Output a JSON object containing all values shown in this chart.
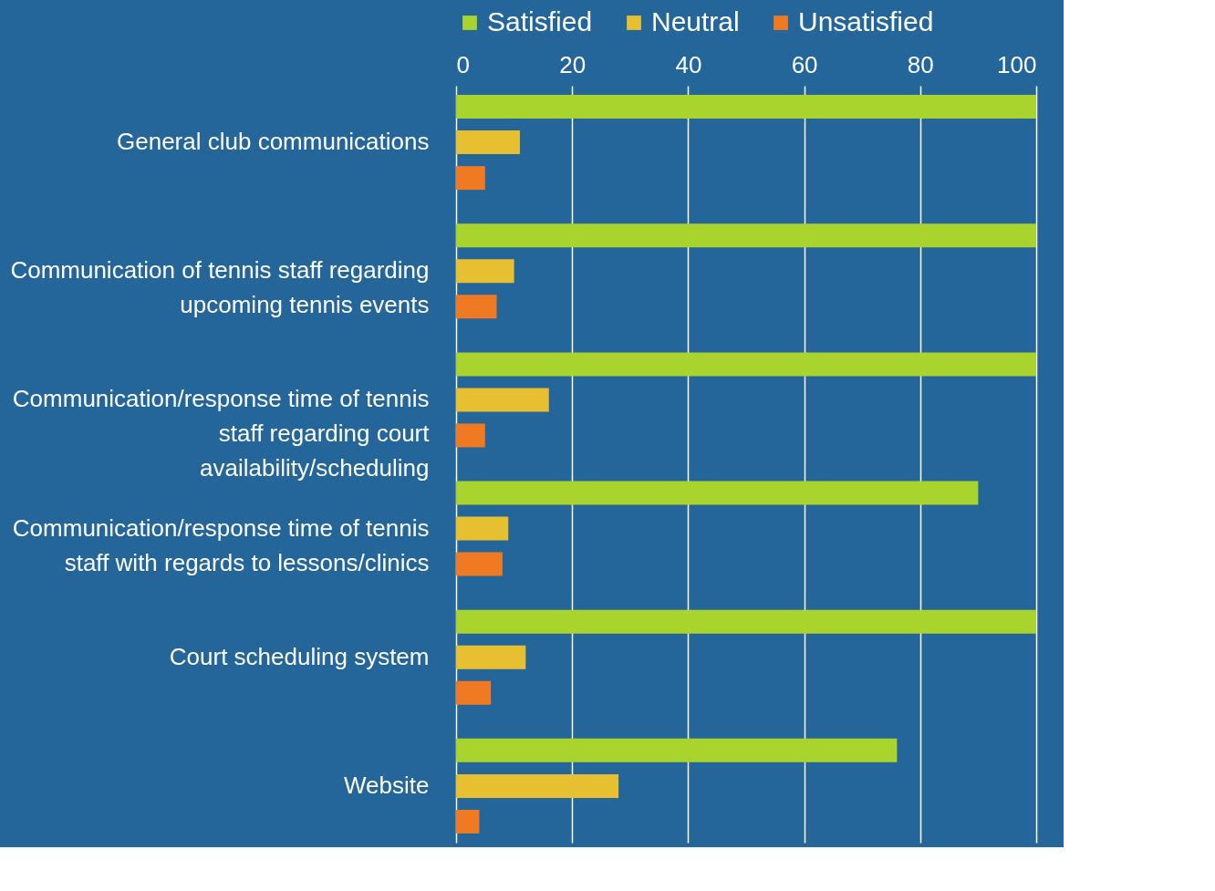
{
  "chart_data": {
    "type": "bar",
    "orientation": "horizontal",
    "categories": [
      "General club communications",
      "Communication of tennis staff regarding upcoming tennis events",
      "Communication/response time of tennis staff regarding court availability/scheduling",
      "Communication/response time of tennis staff with regards to lessons/clinics",
      "Court scheduling system",
      "Website"
    ],
    "series": [
      {
        "name": "Satisfied",
        "color": "#a8d42d",
        "values": [
          100,
          100,
          100,
          90,
          100,
          76
        ]
      },
      {
        "name": "Neutral",
        "color": "#e6c030",
        "values": [
          11,
          10,
          16,
          9,
          12,
          28
        ]
      },
      {
        "name": "Unsatisfied",
        "color": "#ef7a22",
        "values": [
          5,
          7,
          5,
          8,
          6,
          4
        ]
      }
    ],
    "xlim": [
      0,
      100
    ],
    "xticks": [
      0,
      20,
      40,
      60,
      80,
      100
    ],
    "grid": "x",
    "legend": "top"
  }
}
